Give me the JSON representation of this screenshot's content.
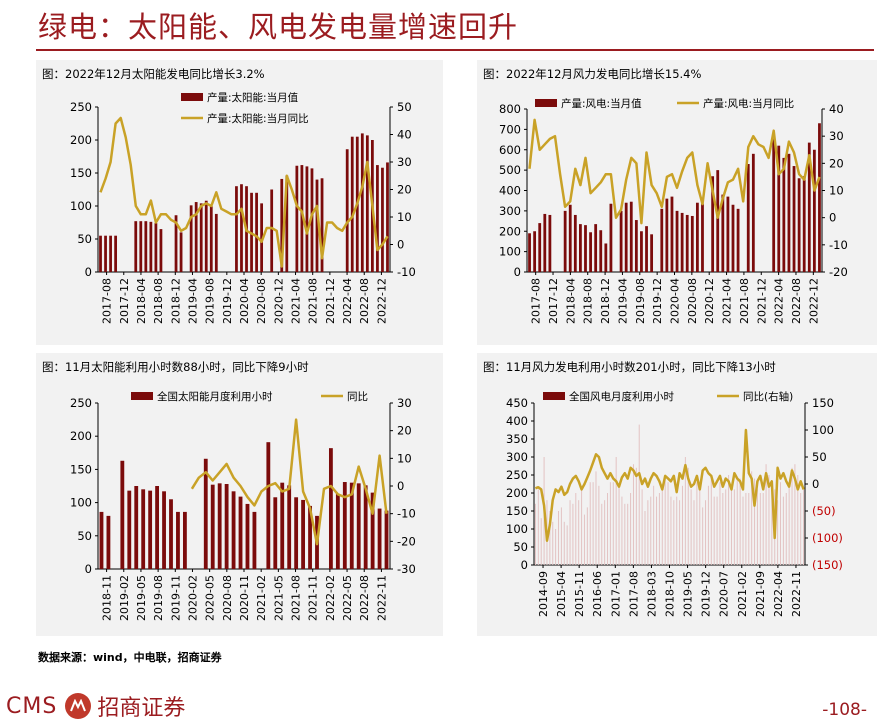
{
  "header": {
    "title": "绿电：太阳能、风电发电量增速回升"
  },
  "colors": {
    "bar": "#7b0b0b",
    "line": "#c9a227",
    "brand": "#9b1c20",
    "bar_light": "#e3c3c3"
  },
  "source": "数据来源：wind，中电联，招商证券",
  "footer": {
    "logo_text": "CMS",
    "logo_cn": "招商证券",
    "page": "-108-"
  },
  "panels": [
    {
      "caption": "图：2022年12月太阳能发电同比增长3.2%"
    },
    {
      "caption": "图：2022年12月风力发电同比增长15.4%"
    },
    {
      "caption": "图：11月太阳能利用小时数88小时，同比下降9小时"
    },
    {
      "caption": "图：11月风力发电利用小时数201小时，同比下降13小时"
    }
  ],
  "chart_data": [
    {
      "type": "bar",
      "legend": [
        "产量:太阳能:当月值",
        "产量:太阳能:当月同比"
      ],
      "legend_position": "top",
      "ylim_left": [
        0,
        250
      ],
      "yticks_left": [
        "0",
        "50",
        "100",
        "150",
        "200",
        "250"
      ],
      "ylim_right": [
        -10,
        50
      ],
      "yticks_right": [
        "-10",
        "0",
        "10",
        "20",
        "30",
        "40",
        "50"
      ],
      "x_ticks": [
        "2017-08",
        "2017-12",
        "2018-04",
        "2018-08",
        "2018-12",
        "2019-04",
        "2019-08",
        "2019-12",
        "2020-04",
        "2020-08",
        "2020-12",
        "2021-04",
        "2021-08",
        "2021-12",
        "2022-04",
        "2022-08",
        "2022-12"
      ],
      "bars": [
        55,
        55,
        55,
        55,
        null,
        null,
        null,
        77,
        77,
        77,
        76,
        74,
        65,
        null,
        null,
        86,
        60,
        null,
        101,
        106,
        104,
        108,
        100,
        88,
        null,
        null,
        null,
        130,
        133,
        130,
        120,
        120,
        104,
        null,
        125,
        null,
        141,
        146,
        null,
        161,
        162,
        160,
        157,
        140,
        142,
        null,
        null,
        null,
        null,
        186,
        205,
        205,
        210,
        207,
        200,
        162,
        158,
        166
      ],
      "line": [
        19,
        null,
        null,
        44,
        46,
        39,
        29,
        14,
        11,
        11,
        16,
        8,
        11,
        null,
        null,
        8,
        5,
        null,
        10,
        11,
        14,
        15,
        14,
        19,
        null,
        null,
        null,
        11,
        13,
        5,
        4,
        3,
        1,
        null,
        null,
        null,
        -8,
        null,
        null,
        null,
        null,
        null,
        null,
        null,
        null,
        null,
        null,
        null,
        null,
        null,
        null,
        null,
        null,
        null,
        null,
        null,
        null,
        3
      ],
      "line_shown": [
        19,
        24,
        30,
        44,
        46,
        39,
        29,
        14,
        11,
        11,
        16,
        8,
        11,
        11,
        9,
        8,
        5,
        6,
        10,
        11,
        14,
        15,
        14,
        19,
        13,
        12,
        11,
        11,
        13,
        5,
        4,
        3,
        1,
        6,
        6,
        5,
        -8,
        25,
        20,
        14,
        12,
        4,
        11,
        14,
        -5,
        8,
        8,
        6,
        5,
        8,
        10,
        15,
        21,
        30,
        14,
        -2,
        0,
        3
      ]
    },
    {
      "type": "bar",
      "legend": [
        "产量:风电:当月值",
        "产量:风电:当月同比"
      ],
      "legend_position": "top",
      "ylim_left": [
        0,
        800
      ],
      "yticks_left": [
        "0",
        "100",
        "200",
        "300",
        "400",
        "500",
        "600",
        "700",
        "800"
      ],
      "ylim_right": [
        -20,
        40
      ],
      "yticks_right": [
        "-20",
        "-10",
        "0",
        "10",
        "20",
        "30",
        "40"
      ],
      "x_ticks": [
        "2017-08",
        "2017-12",
        "2018-04",
        "2018-08",
        "2018-12",
        "2019-04",
        "2019-08",
        "2019-12",
        "2020-04",
        "2020-08",
        "2020-12",
        "2021-04",
        "2021-08",
        "2021-12",
        "2022-04",
        "2022-08",
        "2022-12"
      ],
      "bars": [
        190,
        200,
        240,
        285,
        280,
        null,
        null,
        300,
        330,
        280,
        235,
        230,
        195,
        235,
        205,
        140,
        335,
        null,
        300,
        340,
        345,
        255,
        200,
        225,
        185,
        null,
        310,
        360,
        370,
        300,
        290,
        280,
        275,
        340,
        335,
        null,
        470,
        500,
        380,
        370,
        330,
        310,
        null,
        530,
        580,
        null,
        null,
        null,
        665,
        620,
        560,
        580,
        520,
        460,
        470,
        635,
        600,
        730
      ],
      "line": [
        18,
        36,
        25,
        27,
        29,
        30,
        16,
        4,
        6,
        18,
        12,
        22,
        9,
        null,
        13,
        16,
        16,
        0,
        3,
        14,
        22,
        20,
        -2,
        24,
        12,
        9,
        4,
        15,
        16,
        11,
        17,
        22,
        24,
        12,
        5,
        20,
        10,
        0,
        7,
        13,
        14,
        18,
        6,
        26,
        30,
        27,
        26,
        22,
        32,
        16,
        18,
        28,
        24,
        null,
        null,
        null,
        10,
        15
      ],
      "line_shown": [
        18,
        36,
        25,
        27,
        29,
        30,
        16,
        4,
        6,
        18,
        12,
        22,
        9,
        11,
        13,
        16,
        16,
        0,
        3,
        14,
        22,
        20,
        -2,
        24,
        12,
        9,
        4,
        15,
        16,
        11,
        17,
        22,
        24,
        12,
        5,
        20,
        10,
        0,
        7,
        13,
        14,
        18,
        6,
        26,
        30,
        27,
        26,
        22,
        32,
        16,
        18,
        28,
        24,
        16,
        14,
        23,
        10,
        15
      ]
    },
    {
      "type": "bar",
      "legend": [
        "全国太阳能月度利用小时",
        "同比"
      ],
      "legend_position": "top",
      "ylim_left": [
        0,
        250
      ],
      "yticks_left": [
        "0",
        "50",
        "100",
        "150",
        "200",
        "250"
      ],
      "ylim_right": [
        -30,
        30
      ],
      "yticks_right": [
        "-30",
        "-20",
        "-10",
        "0",
        "10",
        "20",
        "30"
      ],
      "x_ticks": [
        "2018-11",
        "2019-02",
        "2019-05",
        "2019-08",
        "2019-11",
        "2020-02",
        "2020-05",
        "2020-08",
        "2020-11",
        "2021-02",
        "2021-05",
        "2021-08",
        "2021-11",
        "2022-02",
        "2022-05",
        "2022-08",
        "2022-11"
      ],
      "bars": [
        86,
        80,
        null,
        163,
        118,
        125,
        120,
        118,
        125,
        117,
        105,
        86,
        86,
        null,
        null,
        166,
        127,
        129,
        128,
        117,
        109,
        98,
        86,
        null,
        191,
        108,
        130,
        126,
        108,
        104,
        95,
        80,
        null,
        182,
        113,
        131,
        130,
        129,
        126,
        115,
        91,
        88
      ],
      "line": [
        null,
        null,
        null,
        null,
        null,
        null,
        null,
        null,
        null,
        null,
        null,
        null,
        null,
        -1,
        3,
        5,
        2,
        5,
        8,
        3,
        0,
        -4,
        -7,
        null,
        null,
        null,
        null,
        null,
        null,
        null,
        null,
        null,
        null,
        null,
        null,
        null,
        null,
        null,
        null,
        null,
        null,
        null
      ],
      "line_shown": [
        null,
        null,
        null,
        null,
        null,
        null,
        null,
        null,
        null,
        null,
        null,
        null,
        null,
        -1,
        3,
        5,
        2,
        5,
        8,
        3,
        0,
        -4,
        -7,
        -2,
        0,
        1,
        -2,
        -1,
        24,
        -2,
        -8,
        -21,
        -1,
        0,
        -3,
        -4,
        -3,
        7,
        -1,
        -10,
        11,
        -10
      ]
    },
    {
      "type": "bar",
      "legend": [
        "全国风电月度利用小时",
        "同比(右轴)"
      ],
      "legend_position": "top",
      "ylim_left": [
        0,
        450
      ],
      "yticks_left": [
        "0",
        "50",
        "100",
        "150",
        "200",
        "250",
        "300",
        "350",
        "400",
        "450"
      ],
      "ylim_right": [
        -150,
        150
      ],
      "yticks_right": [
        "(150)",
        "(100)",
        "(50)",
        "0",
        "50",
        "100",
        "150"
      ],
      "x_ticks": [
        "2014-09",
        "2015-04",
        "2015-11",
        "2016-06",
        "2017-01",
        "2017-08",
        "2018-03",
        "2018-10",
        "2019-05",
        "2019-12",
        "2020-07",
        "2021-02",
        "2021-09",
        "2022-04",
        "2022-11"
      ],
      "bars": [
        170,
        210,
        130,
        300,
        180,
        150,
        120,
        100,
        150,
        160,
        120,
        110,
        180,
        170,
        200,
        180,
        210,
        140,
        160,
        230,
        230,
        260,
        220,
        170,
        180,
        200,
        230,
        230,
        300,
        220,
        190,
        170,
        170,
        200,
        280,
        270,
        390,
        210,
        150,
        180,
        190,
        220,
        190,
        200,
        220,
        240,
        230,
        190,
        180,
        190,
        180,
        220,
        300,
        270,
        210,
        180,
        230,
        210,
        160,
        180,
        220,
        240,
        190,
        190,
        230,
        200,
        210,
        250,
        210,
        210,
        240,
        240,
        190,
        200,
        200,
        260,
        240,
        210,
        200,
        200,
        280,
        250,
        200,
        210,
        180,
        230,
        190,
        200,
        220,
        270,
        280,
        250,
        200,
        210
      ],
      "line": [
        null,
        null,
        null,
        null,
        null,
        null,
        null,
        null,
        null,
        null,
        null,
        null,
        null,
        null,
        null,
        null,
        null,
        null,
        null,
        null,
        null,
        null,
        null,
        null,
        null,
        null,
        null,
        null,
        null,
        null,
        null,
        null,
        null,
        null,
        null,
        null,
        null,
        null,
        null,
        null,
        null,
        null,
        null,
        null,
        null,
        null,
        null,
        null,
        null,
        null,
        null,
        null,
        null,
        null,
        null,
        null,
        null,
        null,
        null,
        null,
        null,
        null,
        null,
        null,
        null,
        null,
        null,
        null,
        null,
        null,
        null,
        null,
        null,
        null,
        null,
        null,
        null,
        null,
        null,
        null,
        null,
        null,
        null,
        null,
        null,
        null,
        null,
        null,
        null,
        null,
        null,
        null,
        null,
        null
      ],
      "line_shown": [
        -8,
        -6,
        -10,
        -40,
        -105,
        -75,
        -30,
        -10,
        -15,
        -5,
        -20,
        -15,
        0,
        10,
        15,
        5,
        -10,
        0,
        12,
        25,
        40,
        55,
        50,
        30,
        20,
        10,
        20,
        10,
        5,
        -5,
        12,
        20,
        10,
        30,
        25,
        15,
        20,
        0,
        10,
        -5,
        10,
        20,
        15,
        5,
        -10,
        15,
        10,
        5,
        15,
        -15,
        20,
        10,
        35,
        10,
        -5,
        0,
        15,
        -10,
        25,
        30,
        20,
        15,
        -5,
        5,
        15,
        -5,
        10,
        5,
        -10,
        20,
        10,
        5,
        -10,
        100,
        20,
        10,
        -40,
        5,
        15,
        -10,
        20,
        -5,
        5,
        -100,
        30,
        10,
        20,
        5,
        -5,
        25,
        10,
        -10,
        5,
        -10
      ]
    }
  ]
}
